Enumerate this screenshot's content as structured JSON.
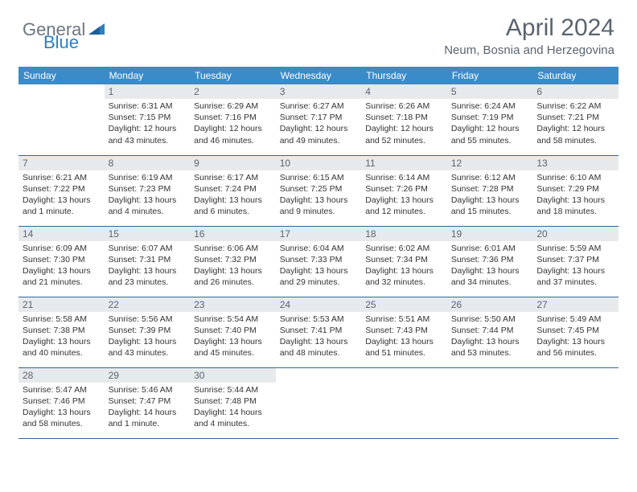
{
  "brand": {
    "text1": "General",
    "text2": "Blue"
  },
  "title": "April 2024",
  "location": "Neum, Bosnia and Herzegovina",
  "weekdays": [
    "Sunday",
    "Monday",
    "Tuesday",
    "Wednesday",
    "Thursday",
    "Friday",
    "Saturday"
  ],
  "colors": {
    "header_bar": "#3b8bc9",
    "daynum_bg": "#e7eaec",
    "row_border": "#336699",
    "title_text": "#5a6470",
    "logo_gray": "#6b7680",
    "logo_blue": "#2f7fc1"
  },
  "weeks": [
    [
      {
        "n": "",
        "sr": "",
        "ss": "",
        "dl": "",
        "empty": true
      },
      {
        "n": "1",
        "sr": "Sunrise: 6:31 AM",
        "ss": "Sunset: 7:15 PM",
        "dl": "Daylight: 12 hours and 43 minutes."
      },
      {
        "n": "2",
        "sr": "Sunrise: 6:29 AM",
        "ss": "Sunset: 7:16 PM",
        "dl": "Daylight: 12 hours and 46 minutes."
      },
      {
        "n": "3",
        "sr": "Sunrise: 6:27 AM",
        "ss": "Sunset: 7:17 PM",
        "dl": "Daylight: 12 hours and 49 minutes."
      },
      {
        "n": "4",
        "sr": "Sunrise: 6:26 AM",
        "ss": "Sunset: 7:18 PM",
        "dl": "Daylight: 12 hours and 52 minutes."
      },
      {
        "n": "5",
        "sr": "Sunrise: 6:24 AM",
        "ss": "Sunset: 7:19 PM",
        "dl": "Daylight: 12 hours and 55 minutes."
      },
      {
        "n": "6",
        "sr": "Sunrise: 6:22 AM",
        "ss": "Sunset: 7:21 PM",
        "dl": "Daylight: 12 hours and 58 minutes."
      }
    ],
    [
      {
        "n": "7",
        "sr": "Sunrise: 6:21 AM",
        "ss": "Sunset: 7:22 PM",
        "dl": "Daylight: 13 hours and 1 minute."
      },
      {
        "n": "8",
        "sr": "Sunrise: 6:19 AM",
        "ss": "Sunset: 7:23 PM",
        "dl": "Daylight: 13 hours and 4 minutes."
      },
      {
        "n": "9",
        "sr": "Sunrise: 6:17 AM",
        "ss": "Sunset: 7:24 PM",
        "dl": "Daylight: 13 hours and 6 minutes."
      },
      {
        "n": "10",
        "sr": "Sunrise: 6:15 AM",
        "ss": "Sunset: 7:25 PM",
        "dl": "Daylight: 13 hours and 9 minutes."
      },
      {
        "n": "11",
        "sr": "Sunrise: 6:14 AM",
        "ss": "Sunset: 7:26 PM",
        "dl": "Daylight: 13 hours and 12 minutes."
      },
      {
        "n": "12",
        "sr": "Sunrise: 6:12 AM",
        "ss": "Sunset: 7:28 PM",
        "dl": "Daylight: 13 hours and 15 minutes."
      },
      {
        "n": "13",
        "sr": "Sunrise: 6:10 AM",
        "ss": "Sunset: 7:29 PM",
        "dl": "Daylight: 13 hours and 18 minutes."
      }
    ],
    [
      {
        "n": "14",
        "sr": "Sunrise: 6:09 AM",
        "ss": "Sunset: 7:30 PM",
        "dl": "Daylight: 13 hours and 21 minutes."
      },
      {
        "n": "15",
        "sr": "Sunrise: 6:07 AM",
        "ss": "Sunset: 7:31 PM",
        "dl": "Daylight: 13 hours and 23 minutes."
      },
      {
        "n": "16",
        "sr": "Sunrise: 6:06 AM",
        "ss": "Sunset: 7:32 PM",
        "dl": "Daylight: 13 hours and 26 minutes."
      },
      {
        "n": "17",
        "sr": "Sunrise: 6:04 AM",
        "ss": "Sunset: 7:33 PM",
        "dl": "Daylight: 13 hours and 29 minutes."
      },
      {
        "n": "18",
        "sr": "Sunrise: 6:02 AM",
        "ss": "Sunset: 7:34 PM",
        "dl": "Daylight: 13 hours and 32 minutes."
      },
      {
        "n": "19",
        "sr": "Sunrise: 6:01 AM",
        "ss": "Sunset: 7:36 PM",
        "dl": "Daylight: 13 hours and 34 minutes."
      },
      {
        "n": "20",
        "sr": "Sunrise: 5:59 AM",
        "ss": "Sunset: 7:37 PM",
        "dl": "Daylight: 13 hours and 37 minutes."
      }
    ],
    [
      {
        "n": "21",
        "sr": "Sunrise: 5:58 AM",
        "ss": "Sunset: 7:38 PM",
        "dl": "Daylight: 13 hours and 40 minutes."
      },
      {
        "n": "22",
        "sr": "Sunrise: 5:56 AM",
        "ss": "Sunset: 7:39 PM",
        "dl": "Daylight: 13 hours and 43 minutes."
      },
      {
        "n": "23",
        "sr": "Sunrise: 5:54 AM",
        "ss": "Sunset: 7:40 PM",
        "dl": "Daylight: 13 hours and 45 minutes."
      },
      {
        "n": "24",
        "sr": "Sunrise: 5:53 AM",
        "ss": "Sunset: 7:41 PM",
        "dl": "Daylight: 13 hours and 48 minutes."
      },
      {
        "n": "25",
        "sr": "Sunrise: 5:51 AM",
        "ss": "Sunset: 7:43 PM",
        "dl": "Daylight: 13 hours and 51 minutes."
      },
      {
        "n": "26",
        "sr": "Sunrise: 5:50 AM",
        "ss": "Sunset: 7:44 PM",
        "dl": "Daylight: 13 hours and 53 minutes."
      },
      {
        "n": "27",
        "sr": "Sunrise: 5:49 AM",
        "ss": "Sunset: 7:45 PM",
        "dl": "Daylight: 13 hours and 56 minutes."
      }
    ],
    [
      {
        "n": "28",
        "sr": "Sunrise: 5:47 AM",
        "ss": "Sunset: 7:46 PM",
        "dl": "Daylight: 13 hours and 58 minutes."
      },
      {
        "n": "29",
        "sr": "Sunrise: 5:46 AM",
        "ss": "Sunset: 7:47 PM",
        "dl": "Daylight: 14 hours and 1 minute."
      },
      {
        "n": "30",
        "sr": "Sunrise: 5:44 AM",
        "ss": "Sunset: 7:48 PM",
        "dl": "Daylight: 14 hours and 4 minutes."
      },
      {
        "n": "",
        "sr": "",
        "ss": "",
        "dl": "",
        "empty": true
      },
      {
        "n": "",
        "sr": "",
        "ss": "",
        "dl": "",
        "empty": true
      },
      {
        "n": "",
        "sr": "",
        "ss": "",
        "dl": "",
        "empty": true
      },
      {
        "n": "",
        "sr": "",
        "ss": "",
        "dl": "",
        "empty": true
      }
    ]
  ]
}
